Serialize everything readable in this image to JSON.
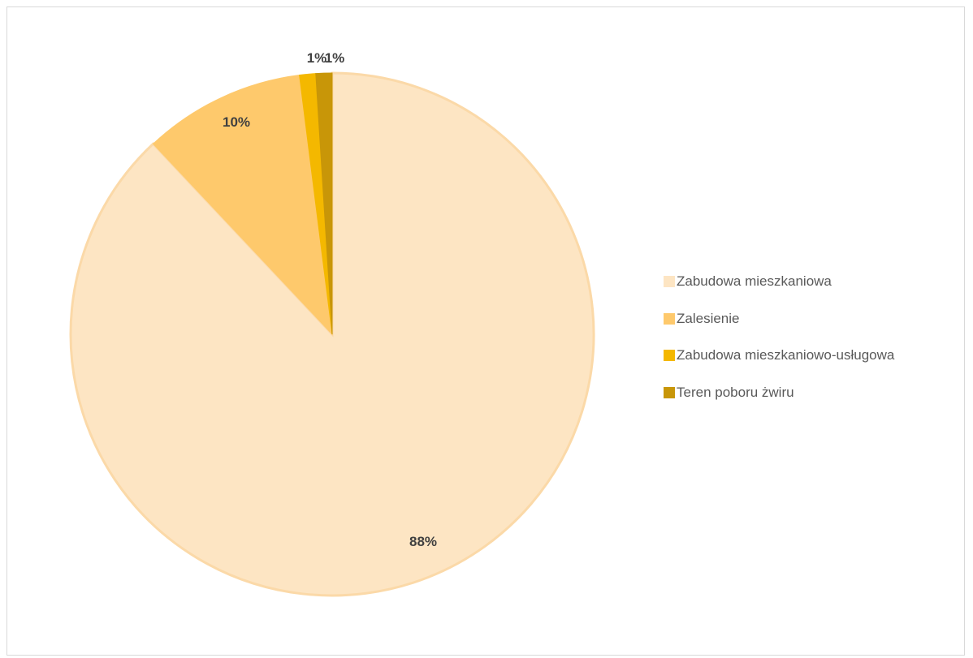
{
  "chart_data": {
    "type": "pie",
    "title": "",
    "legend_position": "right",
    "start_angle": "12 o'clock",
    "direction": "clockwise",
    "slices": [
      {
        "name": "Zabudowa mieszkaniowa",
        "value": 88,
        "label": "88%",
        "color": "#fde5c3"
      },
      {
        "name": "Zalesienie",
        "value": 10,
        "label": "10%",
        "color": "#fec96c"
      },
      {
        "name": "Zabudowa mieszkaniowo-usługowa",
        "value": 1,
        "label": "1%",
        "color": "#f4b800"
      },
      {
        "name": "Teren poboru żwiru",
        "value": 1,
        "label": "1%",
        "color": "#c89608"
      }
    ]
  }
}
